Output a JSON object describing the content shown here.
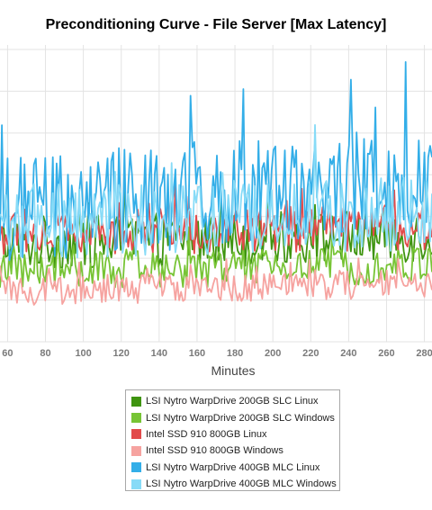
{
  "chart_data": {
    "type": "line",
    "title": "Preconditioning Curve - File Server [Max Latency]",
    "xlabel": "Minutes",
    "ylabel": "",
    "xlim": [
      56,
      284
    ],
    "x_ticks": [
      "60",
      "80",
      "100",
      "120",
      "140",
      "160",
      "180",
      "200",
      "220",
      "240",
      "260",
      "280"
    ],
    "ylim": [
      0,
      7
    ],
    "grid": true,
    "legend_position": "bottom",
    "series": [
      {
        "name": "LSI Nytro WarpDrive 200GB SLC Linux",
        "color": "#3f9410",
        "base": 2.4,
        "amp": 0.65,
        "spikes": 3.2,
        "points": 230
      },
      {
        "name": "LSI Nytro WarpDrive 200GB SLC Windows",
        "color": "#77c435",
        "base": 1.7,
        "amp": 0.45,
        "spikes": 2.3,
        "points": 230
      },
      {
        "name": "Intel SSD 910 800GB Linux",
        "color": "#e24a4a",
        "base": 2.6,
        "amp": 0.55,
        "spikes": 3.3,
        "points": 230
      },
      {
        "name": "Intel SSD 910 800GB Windows",
        "color": "#f6a3a0",
        "base": 1.25,
        "amp": 0.35,
        "spikes": 1.7,
        "points": 230
      },
      {
        "name": "LSI Nytro WarpDrive 400GB MLC Linux",
        "color": "#33aee8",
        "base": 3.3,
        "amp": 1.3,
        "spikes": 6.0,
        "points": 230
      },
      {
        "name": "LSI Nytro WarpDrive 400GB MLC Windows",
        "color": "#87dbf7",
        "base": 2.9,
        "amp": 0.9,
        "spikes": 4.4,
        "points": 230
      }
    ]
  }
}
